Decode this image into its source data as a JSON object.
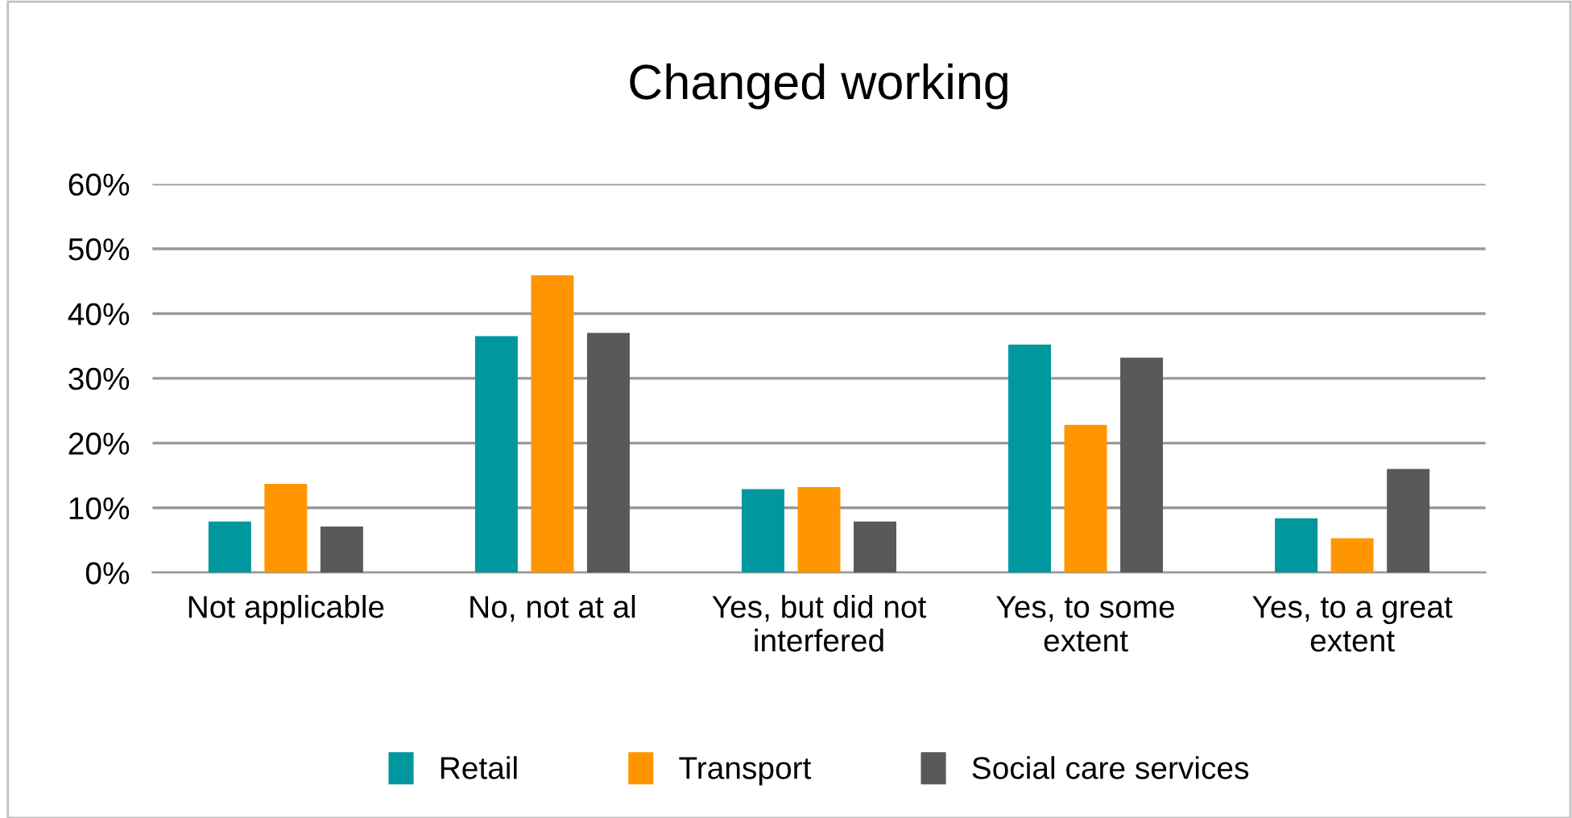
{
  "chart_data": {
    "type": "bar",
    "title": "Changed working",
    "categories": [
      "Not applicable",
      "No, not at al",
      "Yes, but did not\ninterfered",
      "Yes, to some\nextent",
      "Yes, to a great\nextent"
    ],
    "series": [
      {
        "name": "Retail",
        "color": "#00979e",
        "values": [
          7.9,
          36.5,
          12.9,
          35.2,
          8.4
        ]
      },
      {
        "name": "Transport",
        "color": "#ff9600",
        "values": [
          13.7,
          45.9,
          13.2,
          22.8,
          5.3
        ]
      },
      {
        "name": "Social care services",
        "color": "#595957",
        "values": [
          7.1,
          37.0,
          7.9,
          33.2,
          16.0
        ]
      }
    ],
    "ylim": [
      0,
      60
    ],
    "yticks": [
      {
        "value": 0,
        "label": "0%"
      },
      {
        "value": 10,
        "label": "10%"
      },
      {
        "value": 20,
        "label": "20%"
      },
      {
        "value": 30,
        "label": "30%"
      },
      {
        "value": 40,
        "label": "40%"
      },
      {
        "value": 50,
        "label": "50%"
      },
      {
        "value": 60,
        "label": "60%"
      }
    ],
    "grid": "y",
    "legend": "bottom"
  }
}
